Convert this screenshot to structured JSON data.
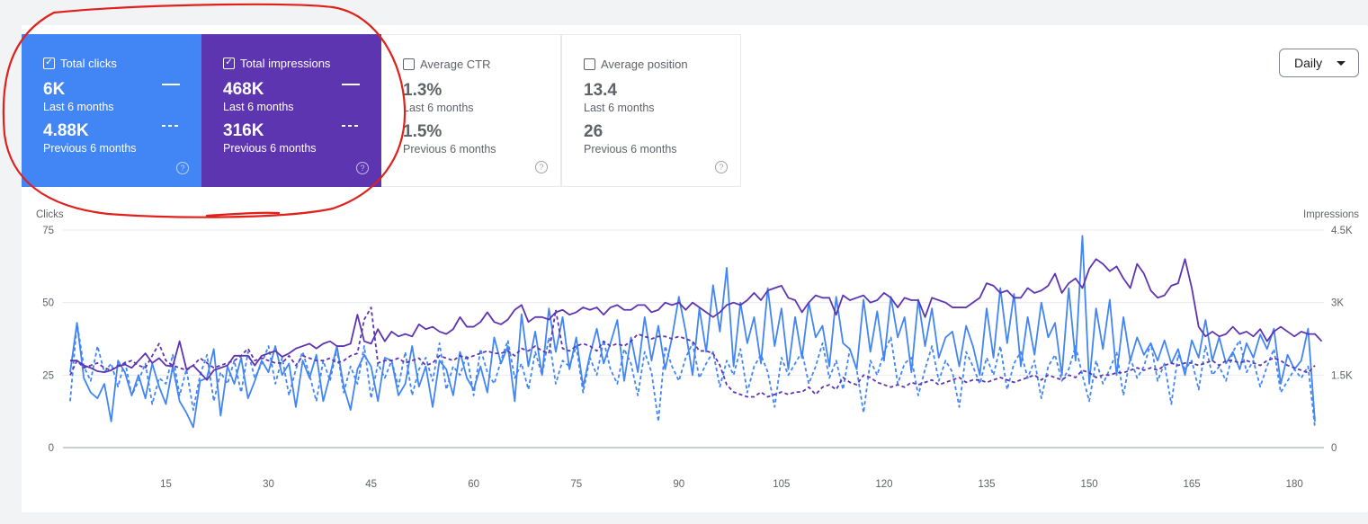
{
  "colors": {
    "clicks": "#4285f4",
    "impressions": "#5e35b1",
    "annotation": "#e0201b"
  },
  "cards": {
    "clicks": {
      "label": "Total clicks",
      "checked": true,
      "value": "6K",
      "period": "Last 6 months",
      "prev_value": "4.88K",
      "prev_period": "Previous 6 months",
      "help_icon": "help-circle-icon"
    },
    "impressions": {
      "label": "Total impressions",
      "checked": true,
      "value": "468K",
      "period": "Last 6 months",
      "prev_value": "316K",
      "prev_period": "Previous 6 months",
      "help_icon": "help-circle-icon"
    },
    "ctr": {
      "label": "Average CTR",
      "checked": false,
      "value": "1.3%",
      "period": "Last 6 months",
      "prev_value": "1.5%",
      "prev_period": "Previous 6 months",
      "help_icon": "help-circle-icon"
    },
    "position": {
      "label": "Average position",
      "checked": false,
      "value": "13.4",
      "period": "Last 6 months",
      "prev_value": "26",
      "prev_period": "Previous 6 months",
      "help_icon": "help-circle-icon"
    }
  },
  "granularity": {
    "selected": "Daily",
    "icon": "caret-down-icon"
  },
  "chart_data": {
    "type": "line",
    "ylabel": "Clicks",
    "y2label": "Impressions",
    "ylim": [
      0,
      75
    ],
    "y2lim": [
      0,
      4500
    ],
    "yticks": [
      "0",
      "25",
      "50",
      "75"
    ],
    "y2ticks": [
      "0",
      "1.5K",
      "3K",
      "4.5K"
    ],
    "xlim": [
      1,
      183
    ],
    "xticks": [
      15,
      30,
      45,
      60,
      75,
      90,
      105,
      120,
      135,
      150,
      165,
      180
    ],
    "grid": true,
    "series": [
      {
        "key": "clicks_current",
        "axis": "left",
        "style": "solid",
        "color": "#4285f4",
        "values": [
          26,
          43,
          24,
          19,
          17,
          22,
          9,
          30,
          26,
          18,
          25,
          17,
          29,
          21,
          15,
          28,
          16,
          12,
          7,
          23,
          24,
          34,
          11,
          28,
          22,
          31,
          17,
          23,
          30,
          26,
          35,
          25,
          29,
          14,
          30,
          24,
          32,
          16,
          25,
          35,
          21,
          13,
          27,
          32,
          28,
          16,
          31,
          30,
          18,
          22,
          35,
          21,
          28,
          14,
          30,
          27,
          18,
          33,
          24,
          20,
          28,
          19,
          38,
          29,
          35,
          16,
          46,
          28,
          40,
          25,
          48,
          33,
          45,
          27,
          38,
          21,
          32,
          41,
          29,
          36,
          44,
          23,
          38,
          26,
          45,
          30,
          42,
          27,
          38,
          52,
          40,
          25,
          48,
          33,
          56,
          40,
          62,
          28,
          50,
          36,
          45,
          29,
          55,
          35,
          48,
          27,
          45,
          31,
          50,
          38,
          42,
          28,
          52,
          36,
          34,
          27,
          51,
          33,
          47,
          30,
          52,
          38,
          45,
          26,
          51,
          35,
          48,
          31,
          38,
          40,
          28,
          42,
          35,
          25,
          48,
          31,
          55,
          36,
          53,
          28,
          45,
          32,
          50,
          38,
          43,
          25,
          55,
          30,
          73,
          22,
          48,
          34,
          51,
          25,
          45,
          30,
          38,
          32,
          36,
          30,
          37,
          29,
          34,
          25,
          37,
          31,
          44,
          30,
          38,
          29,
          33,
          27,
          36,
          31,
          39,
          34,
          41,
          22,
          32,
          27,
          30,
          41,
          9
        ]
      },
      {
        "key": "clicks_previous",
        "axis": "left",
        "style": "dashed",
        "color": "#4285f4",
        "values": [
          16,
          43,
          28,
          23,
          35,
          26,
          29,
          21,
          30,
          18,
          23,
          29,
          15,
          24,
          22,
          32,
          18,
          27,
          13,
          25,
          32,
          16,
          26,
          22,
          30,
          19,
          33,
          24,
          29,
          35,
          22,
          31,
          18,
          27,
          33,
          25,
          16,
          30,
          23,
          34,
          19,
          28,
          22,
          35,
          17,
          29,
          24,
          30,
          21,
          33,
          18,
          27,
          31,
          23,
          36,
          20,
          28,
          25,
          32,
          18,
          34,
          26,
          22,
          30,
          37,
          24,
          29,
          20,
          33,
          25,
          38,
          22,
          30,
          28,
          35,
          19,
          31,
          25,
          37,
          27,
          22,
          34,
          29,
          18,
          33,
          26,
          9,
          35,
          28,
          23,
          31,
          36,
          24,
          29,
          33,
          21,
          30,
          25,
          34,
          19,
          28,
          32,
          26,
          14,
          31,
          25,
          29,
          33,
          22,
          28,
          36,
          24,
          30,
          20,
          34,
          27,
          12,
          30,
          25,
          33,
          38,
          22,
          29,
          31,
          18,
          27,
          35,
          23,
          30,
          26,
          14,
          33,
          28,
          22,
          31,
          25,
          35,
          20,
          29,
          33,
          24,
          30,
          17,
          28,
          32,
          23,
          27,
          35,
          25,
          16,
          30,
          22,
          27,
          33,
          18,
          31,
          24,
          28,
          36,
          23,
          29,
          15,
          32,
          27,
          30,
          20,
          35,
          25,
          28,
          23,
          33,
          37,
          26,
          30,
          21,
          28,
          34,
          19,
          23,
          27,
          24,
          28,
          7
        ]
      },
      {
        "key": "impressions_current",
        "axis": "right",
        "style": "solid",
        "color": "#5e35b1",
        "values": [
          1800,
          1800,
          1700,
          1650,
          1580,
          1560,
          1600,
          1680,
          1720,
          1650,
          1800,
          1950,
          1750,
          1850,
          1700,
          1680,
          2200,
          1620,
          1700,
          1550,
          1400,
          1600,
          1650,
          1700,
          1900,
          1900,
          1900,
          1700,
          1900,
          1950,
          2000,
          1880,
          1950,
          2050,
          2100,
          2150,
          2050,
          2150,
          2200,
          2100,
          2100,
          2150,
          2750,
          2200,
          2150,
          2450,
          2200,
          2400,
          2300,
          2350,
          2300,
          2550,
          2450,
          2500,
          2400,
          2350,
          2450,
          2700,
          2500,
          2500,
          2600,
          2800,
          2600,
          2550,
          2650,
          2850,
          2950,
          2600,
          2700,
          2700,
          2650,
          2800,
          2850,
          2750,
          2800,
          2900,
          2850,
          2900,
          2750,
          2900,
          2950,
          2850,
          2850,
          2950,
          2950,
          2800,
          2850,
          3000,
          2950,
          3000,
          2850,
          3000,
          2900,
          2800,
          2700,
          2800,
          2950,
          3000,
          2950,
          3050,
          3200,
          3050,
          3250,
          3300,
          3350,
          3100,
          3050,
          2800,
          3000,
          3150,
          3100,
          3100,
          2750,
          3150,
          3050,
          3100,
          3150,
          3000,
          3050,
          3200,
          3100,
          2900,
          3100,
          3050,
          3050,
          2700,
          3100,
          3050,
          3000,
          2900,
          2900,
          2900,
          3000,
          3100,
          3400,
          3350,
          3200,
          3250,
          3100,
          3100,
          3300,
          3200,
          3250,
          3350,
          3600,
          3200,
          3400,
          3500,
          3300,
          3700,
          3900,
          3800,
          3650,
          3750,
          3500,
          3300,
          3800,
          3600,
          3250,
          3100,
          3150,
          3350,
          3400,
          3900,
          3300,
          2500,
          2300,
          2400,
          2300,
          2350,
          2500,
          2350,
          2400,
          2300,
          2450,
          2200,
          2400,
          2500,
          2400,
          2300,
          2400,
          2350,
          2350,
          2200
        ]
      },
      {
        "key": "impressions_previous",
        "axis": "right",
        "style": "dashed",
        "color": "#5e35b1",
        "values": [
          1500,
          1800,
          1650,
          1700,
          1750,
          1650,
          1600,
          1700,
          1750,
          1800,
          1700,
          1650,
          1900,
          2150,
          1800,
          1700,
          1650,
          1600,
          1700,
          1850,
          1750,
          1650,
          1700,
          1750,
          1800,
          1900,
          2050,
          1800,
          1850,
          1800,
          1750,
          1750,
          1900,
          1700,
          1900,
          1850,
          1800,
          1800,
          1850,
          1750,
          1800,
          1900,
          1950,
          2650,
          2900,
          1750,
          1800,
          1800,
          1850,
          1750,
          1800,
          1850,
          1700,
          1750,
          1900,
          1850,
          1800,
          1900,
          1850,
          1900,
          1950,
          2000,
          1950,
          1950,
          2000,
          1900,
          2050,
          2000,
          2100,
          2000,
          1950,
          2850,
          2050,
          2000,
          2100,
          2150,
          2100,
          2000,
          2200,
          2100,
          2150,
          2100,
          2200,
          2350,
          2300,
          2250,
          2300,
          2300,
          2250,
          2300,
          2250,
          2200,
          2000,
          2000,
          1950,
          1700,
          1300,
          1150,
          1100,
          1050,
          1050,
          1150,
          1050,
          1100,
          1150,
          1100,
          1150,
          1150,
          1250,
          1100,
          1250,
          1300,
          1200,
          1450,
          1350,
          1300,
          1500,
          1450,
          1350,
          1300,
          1250,
          1300,
          1250,
          1350,
          1300,
          1350,
          1400,
          1300,
          1350,
          1400,
          1450,
          1350,
          1400,
          1400,
          1350,
          1400,
          1450,
          1400,
          1350,
          1400,
          1450,
          1500,
          1400,
          1500,
          1450,
          1400,
          1500,
          1450,
          1600,
          1550,
          1450,
          1500,
          1500,
          1550,
          1550,
          1600,
          1650,
          1600,
          1650,
          1600,
          1700,
          1750,
          1700,
          1750,
          1750,
          1700,
          1750,
          1800,
          1700,
          1800,
          1800,
          1750,
          1800,
          1750,
          1700,
          1800,
          1850,
          1800,
          1700,
          1650,
          1600,
          1550,
          1700
        ]
      }
    ]
  }
}
